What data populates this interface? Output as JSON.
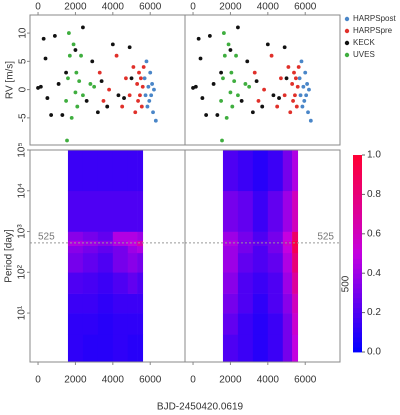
{
  "chart_data": [
    {
      "type": "scatter",
      "ylabel": "RV [m/s]",
      "xlim": [
        -430,
        7860
      ],
      "ylim": [
        -9.8,
        13.2
      ],
      "xticks": [
        0,
        2000,
        4000,
        6000
      ],
      "yticks": [
        -5,
        0,
        5,
        10
      ],
      "legend": "right",
      "series": [
        {
          "name": "HARPSpost",
          "color": "#4a86c8",
          "x": [
            5700,
            5750,
            5800,
            5850,
            5900,
            5950,
            6000,
            6050,
            6100,
            6150,
            6200,
            6300
          ],
          "values": [
            2,
            -1,
            5,
            -3,
            0.5,
            -2,
            3,
            -1,
            1,
            -4,
            0,
            -5.5
          ]
        },
        {
          "name": "HARPSpre",
          "color": "#e0302a",
          "x": [
            3300,
            3500,
            3800,
            4200,
            4500,
            4700,
            4900,
            5100,
            5200,
            5300,
            5350,
            5400,
            5450,
            5500,
            5550,
            5600,
            5650
          ],
          "values": [
            3,
            -2,
            0,
            6,
            -3,
            2,
            -1,
            4,
            -4,
            1,
            -2,
            3,
            -1,
            2,
            -3,
            0.5,
            4
          ]
        },
        {
          "name": "KECK",
          "color": "#111111",
          "x": [
            0,
            150,
            300,
            400,
            500,
            700,
            900,
            1100,
            1300,
            1500,
            2000,
            2400,
            2600,
            2900,
            3200,
            3400,
            3700,
            4000,
            4300,
            4600,
            4900,
            5000
          ],
          "values": [
            0.3,
            0.5,
            9,
            5.5,
            -1.5,
            -4.5,
            9.5,
            1,
            -4.5,
            3,
            7,
            11,
            -2,
            5,
            -4,
            1.5,
            -3,
            8,
            -1,
            -1.5,
            7.5,
            2
          ]
        },
        {
          "name": "UVES",
          "color": "#3fae3f",
          "x": [
            1500,
            1550,
            1600,
            1650,
            1700,
            1800,
            1900,
            2000,
            2050,
            2100,
            2200,
            2300,
            2400,
            2800,
            3000
          ],
          "values": [
            -2,
            -9,
            2,
            10,
            6,
            -5,
            8,
            -0.5,
            3,
            -3,
            1.5,
            6,
            -1,
            1,
            0.5
          ]
        }
      ]
    },
    {
      "type": "heatmap",
      "ylabel": "Period [day]",
      "xlabel": "BJD-2450420.0619",
      "xlim": [
        -430,
        7860
      ],
      "ylim": [
        0.63,
        100000
      ],
      "log_y": true,
      "xticks": [
        0,
        2000,
        4000,
        6000
      ],
      "yticks": [
        {
          "value": 10,
          "label": "10¹"
        },
        {
          "value": 100,
          "label": "10²"
        },
        {
          "value": 1000,
          "label": "10³"
        },
        {
          "value": 10000,
          "label": "10⁴"
        },
        {
          "value": 100000,
          "label": "10⁵"
        }
      ],
      "colorscale": [
        "#0000ff",
        "#c400e0",
        "#ff0033"
      ],
      "colorbar": {
        "lim": [
          0,
          1
        ],
        "ticks": [
          {
            "value": 0,
            "label": "0.0"
          },
          {
            "value": 0.2,
            "label": "0.2"
          },
          {
            "value": 0.4,
            "label": "0.4"
          },
          {
            "value": 0.6,
            "label": "0.6"
          },
          {
            "value": 0.8,
            "label": "0.8"
          },
          {
            "value": 1,
            "label": "1.0"
          }
        ]
      },
      "side_label": "500",
      "panels": [
        {
          "x_edges": [
            1600,
            2400,
            3200,
            4000,
            4800,
            5300,
            5600
          ],
          "y_edges": [
            0.63,
            3,
            10,
            30,
            100,
            300,
            450,
            600,
            1000,
            10000,
            100000
          ],
          "annotation": 525,
          "values": [
            [
              0.12,
              0.1,
              0.1,
              0.12,
              0.1,
              0.1
            ],
            [
              0.12,
              0.12,
              0.1,
              0.12,
              0.12,
              0.12
            ],
            [
              0.15,
              0.15,
              0.12,
              0.15,
              0.15,
              0.15
            ],
            [
              0.2,
              0.18,
              0.15,
              0.2,
              0.25,
              0.2
            ],
            [
              0.3,
              0.25,
              0.2,
              0.3,
              0.35,
              0.3
            ],
            [
              0.35,
              0.3,
              0.25,
              0.3,
              0.4,
              0.45
            ],
            [
              0.45,
              0.4,
              0.35,
              0.45,
              0.5,
              0.65
            ],
            [
              0.35,
              0.3,
              0.25,
              0.45,
              0.45,
              0.4
            ],
            [
              0.2,
              0.2,
              0.2,
              0.2,
              0.2,
              0.2
            ],
            [
              0.15,
              0.15,
              0.15,
              0.15,
              0.15,
              0.15
            ]
          ]
        },
        {
          "x_edges": [
            1600,
            2400,
            3200,
            4000,
            4800,
            5300,
            5600
          ],
          "y_edges": [
            0.63,
            3,
            10,
            30,
            100,
            300,
            450,
            600,
            1000,
            10000,
            100000
          ],
          "annotation": 525,
          "values": [
            [
              0.2,
              0.15,
              0.1,
              0.15,
              0.3,
              0.5
            ],
            [
              0.25,
              0.15,
              0.1,
              0.15,
              0.3,
              0.55
            ],
            [
              0.3,
              0.2,
              0.12,
              0.2,
              0.35,
              0.6
            ],
            [
              0.35,
              0.2,
              0.15,
              0.2,
              0.4,
              0.7
            ],
            [
              0.4,
              0.25,
              0.2,
              0.25,
              0.45,
              0.8
            ],
            [
              0.4,
              0.3,
              0.2,
              0.3,
              0.5,
              0.9
            ],
            [
              0.45,
              0.3,
              0.25,
              0.3,
              0.55,
              0.95
            ],
            [
              0.4,
              0.3,
              0.2,
              0.3,
              0.5,
              0.85
            ],
            [
              0.3,
              0.25,
              0.15,
              0.25,
              0.4,
              0.6
            ],
            [
              0.2,
              0.15,
              0.1,
              0.15,
              0.3,
              0.45
            ]
          ]
        }
      ]
    }
  ]
}
